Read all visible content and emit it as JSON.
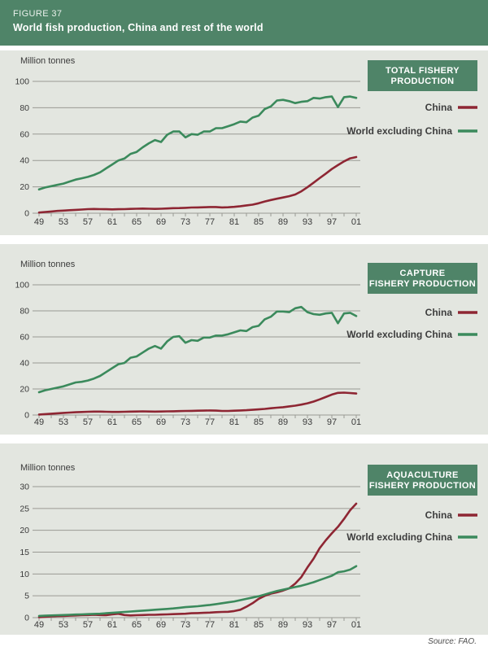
{
  "header": {
    "figure_label": "FIGURE 37",
    "title": "World fish production, China and rest of the world"
  },
  "source_note": "Source: FAO.",
  "colors": {
    "header_green": "#4f8468",
    "legend_green": "#4f8468",
    "panel_bg": "#e3e6e0",
    "china_line": "#8e2633",
    "world_line": "#3b8a5c",
    "grid": "#9a9a94",
    "text": "#3a3a3a"
  },
  "chart_data": [
    {
      "type": "line",
      "title": "TOTAL FISHERY PRODUCTION",
      "title_lines": [
        "TOTAL FISHERY",
        "PRODUCTION"
      ],
      "ylabel": "Million tonnes",
      "ylim": [
        0,
        100
      ],
      "ytick_step": 20,
      "x_start_year": 1949,
      "x_end_year": 2001,
      "xtick_labels": [
        "49",
        "53",
        "57",
        "61",
        "65",
        "69",
        "73",
        "77",
        "81",
        "85",
        "89",
        "93",
        "97",
        "01"
      ],
      "legend_position": "right",
      "grid": true,
      "legend": [
        {
          "label": "China",
          "color_key": "china_line"
        },
        {
          "label": "World excluding China",
          "color_key": "world_line"
        }
      ],
      "series": [
        {
          "name": "China",
          "values": [
            0.5,
            0.9,
            1.3,
            1.7,
            2.0,
            2.3,
            2.5,
            2.8,
            3.1,
            3.2,
            3.1,
            3.0,
            2.9,
            3.0,
            3.1,
            3.3,
            3.4,
            3.5,
            3.4,
            3.3,
            3.4,
            3.6,
            3.8,
            3.9,
            4.1,
            4.3,
            4.4,
            4.5,
            4.7,
            4.7,
            4.4,
            4.5,
            4.8,
            5.3,
            5.9,
            6.5,
            7.5,
            8.9,
            10.0,
            11.0,
            11.9,
            12.9,
            14.2,
            16.6,
            19.7,
            23.1,
            26.6,
            30.0,
            33.5,
            36.5,
            39.3,
            41.6,
            42.6
          ]
        },
        {
          "name": "World excluding China",
          "values": [
            18.0,
            19.5,
            20.5,
            21.5,
            22.5,
            24.0,
            25.5,
            26.5,
            27.5,
            29.0,
            31.0,
            34.0,
            37.0,
            40.0,
            41.5,
            45.0,
            46.5,
            50.0,
            53.0,
            55.5,
            54.0,
            59.5,
            62.0,
            62.0,
            57.5,
            60.0,
            59.5,
            62.0,
            62.0,
            64.5,
            64.5,
            66.0,
            67.5,
            69.5,
            69.0,
            72.5,
            74.0,
            79.0,
            81.0,
            85.5,
            86.0,
            85.0,
            83.5,
            84.5,
            85.0,
            87.5,
            87.0,
            88.0,
            88.5,
            80.5,
            88.0,
            88.5,
            87.5
          ]
        }
      ]
    },
    {
      "type": "line",
      "title": "CAPTURE FISHERY PRODUCTION",
      "title_lines": [
        "CAPTURE",
        "FISHERY PRODUCTION"
      ],
      "ylabel": "Million tonnes",
      "ylim": [
        0,
        100
      ],
      "ytick_step": 20,
      "x_start_year": 1949,
      "x_end_year": 2001,
      "xtick_labels": [
        "49",
        "53",
        "57",
        "61",
        "65",
        "69",
        "73",
        "77",
        "81",
        "85",
        "89",
        "93",
        "97",
        "01"
      ],
      "legend_position": "right",
      "grid": true,
      "legend": [
        {
          "label": "China",
          "color_key": "china_line"
        },
        {
          "label": "World excluding China",
          "color_key": "world_line"
        }
      ],
      "series": [
        {
          "name": "China",
          "values": [
            0.4,
            0.7,
            1.0,
            1.3,
            1.6,
            1.9,
            2.1,
            2.3,
            2.5,
            2.6,
            2.6,
            2.5,
            2.4,
            2.4,
            2.5,
            2.6,
            2.7,
            2.8,
            2.7,
            2.6,
            2.7,
            2.8,
            2.9,
            3.0,
            3.1,
            3.2,
            3.3,
            3.4,
            3.5,
            3.4,
            3.1,
            3.1,
            3.3,
            3.5,
            3.7,
            4.0,
            4.3,
            4.7,
            5.2,
            5.6,
            6.0,
            6.6,
            7.2,
            8.0,
            9.0,
            10.3,
            12.0,
            13.8,
            15.7,
            17.0,
            17.2,
            16.9,
            16.5
          ]
        },
        {
          "name": "World excluding China",
          "values": [
            17.5,
            19.0,
            20.0,
            21.0,
            22.0,
            23.5,
            25.0,
            25.5,
            26.5,
            28.0,
            30.0,
            33.0,
            36.0,
            39.0,
            40.0,
            44.0,
            45.0,
            48.0,
            51.0,
            53.0,
            51.0,
            56.5,
            60.0,
            60.5,
            55.5,
            57.5,
            57.0,
            59.5,
            59.5,
            61.0,
            61.0,
            62.0,
            63.5,
            65.0,
            64.5,
            67.5,
            68.5,
            73.5,
            75.5,
            79.5,
            79.5,
            79.0,
            82.0,
            83.0,
            79.0,
            77.5,
            77.0,
            78.0,
            78.5,
            70.5,
            78.0,
            78.5,
            76.0
          ]
        }
      ]
    },
    {
      "type": "line",
      "title": "AQUACULTURE FISHERY PRODUCTION",
      "title_lines": [
        "AQUACULTURE",
        "FISHERY PRODUCTION"
      ],
      "ylabel": "Million tonnes",
      "ylim": [
        0,
        30
      ],
      "ytick_step": 5,
      "x_start_year": 1949,
      "x_end_year": 2001,
      "xtick_labels": [
        "49",
        "53",
        "57",
        "61",
        "65",
        "69",
        "73",
        "77",
        "81",
        "85",
        "89",
        "93",
        "97",
        "01"
      ],
      "legend_position": "right",
      "grid": true,
      "legend": [
        {
          "label": "China",
          "color_key": "china_line"
        },
        {
          "label": "World excluding China",
          "color_key": "world_line"
        }
      ],
      "series": [
        {
          "name": "China",
          "values": [
            0.1,
            0.2,
            0.3,
            0.35,
            0.4,
            0.45,
            0.5,
            0.55,
            0.6,
            0.65,
            0.6,
            0.55,
            0.75,
            0.9,
            0.6,
            0.5,
            0.55,
            0.6,
            0.65,
            0.65,
            0.7,
            0.75,
            0.8,
            0.85,
            0.9,
            1.0,
            1.05,
            1.1,
            1.15,
            1.25,
            1.3,
            1.35,
            1.5,
            1.8,
            2.5,
            3.3,
            4.3,
            5.0,
            5.5,
            5.8,
            6.2,
            6.7,
            7.8,
            9.3,
            11.5,
            13.5,
            15.9,
            17.7,
            19.3,
            20.8,
            22.6,
            24.6,
            26.1
          ]
        },
        {
          "name": "World excluding China",
          "values": [
            0.4,
            0.45,
            0.5,
            0.55,
            0.6,
            0.65,
            0.7,
            0.75,
            0.8,
            0.85,
            0.9,
            1.0,
            1.1,
            1.2,
            1.3,
            1.4,
            1.5,
            1.6,
            1.7,
            1.8,
            1.9,
            2.0,
            2.1,
            2.25,
            2.4,
            2.5,
            2.6,
            2.75,
            2.9,
            3.1,
            3.3,
            3.5,
            3.7,
            4.0,
            4.3,
            4.6,
            4.9,
            5.3,
            5.7,
            6.1,
            6.4,
            6.7,
            7.0,
            7.3,
            7.7,
            8.1,
            8.6,
            9.1,
            9.6,
            10.4,
            10.6,
            11.0,
            11.8
          ]
        }
      ]
    }
  ]
}
